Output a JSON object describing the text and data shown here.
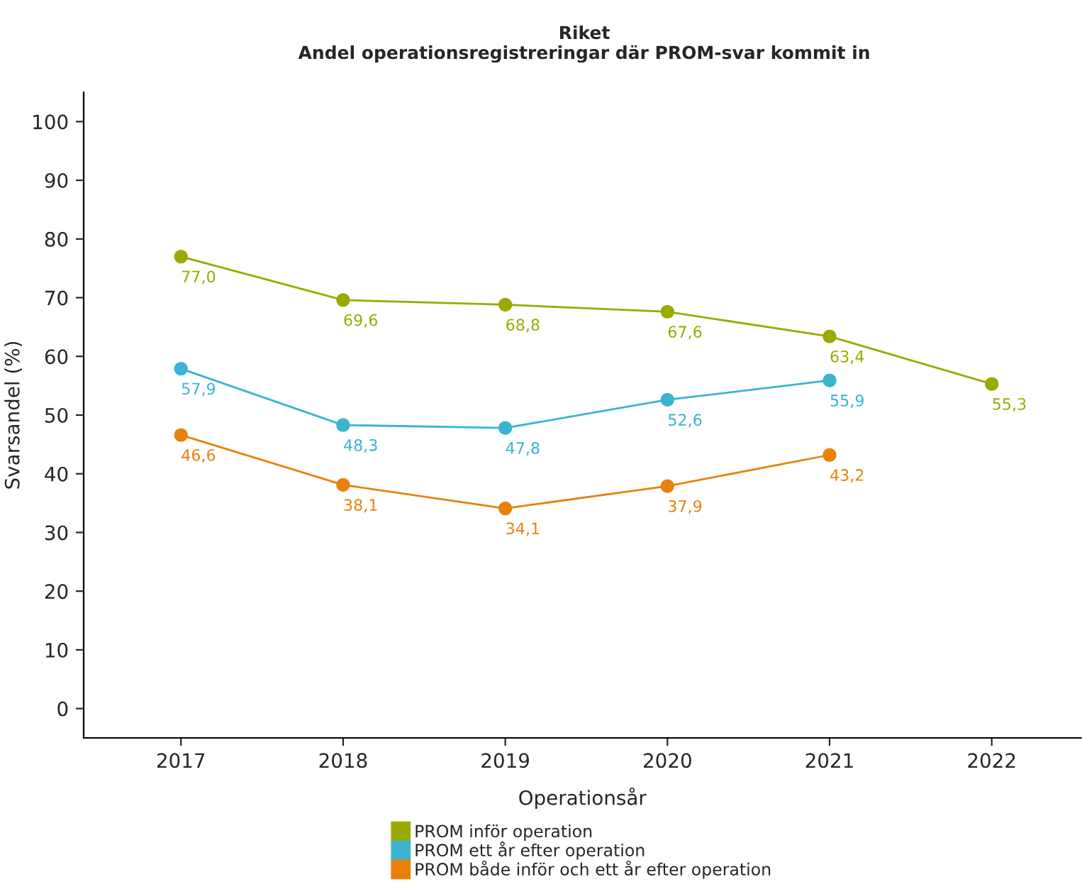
{
  "chart_data": {
    "type": "line",
    "title": "Riket",
    "subtitle": "Andel operationsregistreringar där PROM-svar kommit in",
    "xlabel": "Operationsår",
    "ylabel": "Svarsandel (%)",
    "xlim": [
      2016.4,
      2022.55
    ],
    "xticks": [
      2017,
      2018,
      2019,
      2020,
      2021,
      2022
    ],
    "ylim": [
      -5,
      105
    ],
    "yticks": [
      0,
      10,
      20,
      30,
      40,
      50,
      60,
      70,
      80,
      90,
      100
    ],
    "grid": false,
    "legend": "bottom",
    "marker": "circle",
    "line_style": "solid",
    "series": [
      {
        "name": "PROM inför operation",
        "color": "#9aaa00",
        "x": [
          2017,
          2018,
          2019,
          2020,
          2021,
          2022
        ],
        "values": [
          77.0,
          69.6,
          68.8,
          67.6,
          63.4,
          55.3
        ],
        "value_labels": [
          "77,0",
          "69,6",
          "68,8",
          "67,6",
          "63,4",
          "55,3"
        ]
      },
      {
        "name": "PROM ett år efter operation",
        "color": "#3bb3d1",
        "x": [
          2017,
          2018,
          2019,
          2020,
          2021
        ],
        "values": [
          57.9,
          48.3,
          47.8,
          52.6,
          55.9
        ],
        "value_labels": [
          "57,9",
          "48,3",
          "47,8",
          "52,6",
          "55,9"
        ]
      },
      {
        "name": "PROM både inför och ett år efter operation",
        "color": "#e8820c",
        "x": [
          2017,
          2018,
          2019,
          2020,
          2021
        ],
        "values": [
          46.6,
          38.1,
          34.1,
          37.9,
          43.2
        ],
        "value_labels": [
          "46,6",
          "38,1",
          "34,1",
          "37,9",
          "43,2"
        ]
      }
    ]
  }
}
